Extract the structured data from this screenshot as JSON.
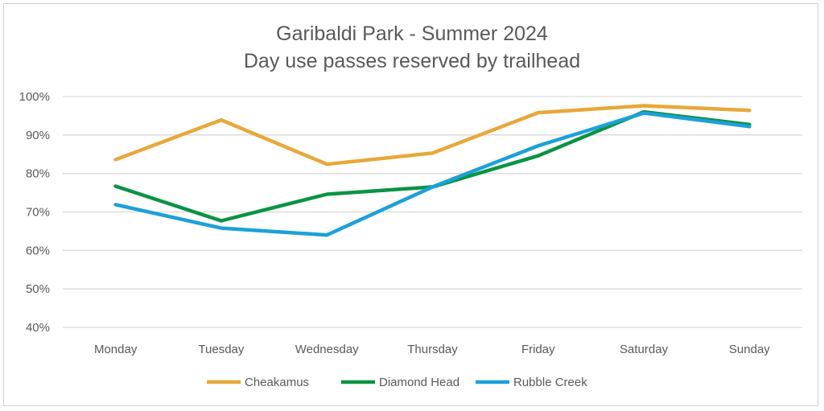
{
  "chart_data": {
    "type": "line",
    "title": "Garibaldi Park - Summer 2024",
    "subtitle": "Day use passes reserved by trailhead",
    "xlabel": "",
    "ylabel": "",
    "categories": [
      "Monday",
      "Tuesday",
      "Wednesday",
      "Thursday",
      "Friday",
      "Saturday",
      "Sunday"
    ],
    "ylim": [
      40,
      100
    ],
    "yticks": [
      40,
      50,
      60,
      70,
      80,
      90,
      100
    ],
    "ytick_labels": [
      "40%",
      "50%",
      "60%",
      "70%",
      "80%",
      "90%",
      "100%"
    ],
    "grid": true,
    "legend_position": "bottom",
    "series": [
      {
        "name": "Cheakamus",
        "color": "#E8A838",
        "values": [
          83.6,
          93.9,
          82.4,
          85.3,
          95.8,
          97.6,
          96.4
        ]
      },
      {
        "name": "Diamond Head",
        "color": "#0A9444",
        "values": [
          76.7,
          67.7,
          74.6,
          76.5,
          84.6,
          96.0,
          92.7
        ]
      },
      {
        "name": "Rubble Creek",
        "color": "#1BA1DA",
        "values": [
          71.9,
          65.8,
          64.0,
          76.5,
          87.2,
          95.7,
          92.2
        ]
      }
    ]
  }
}
